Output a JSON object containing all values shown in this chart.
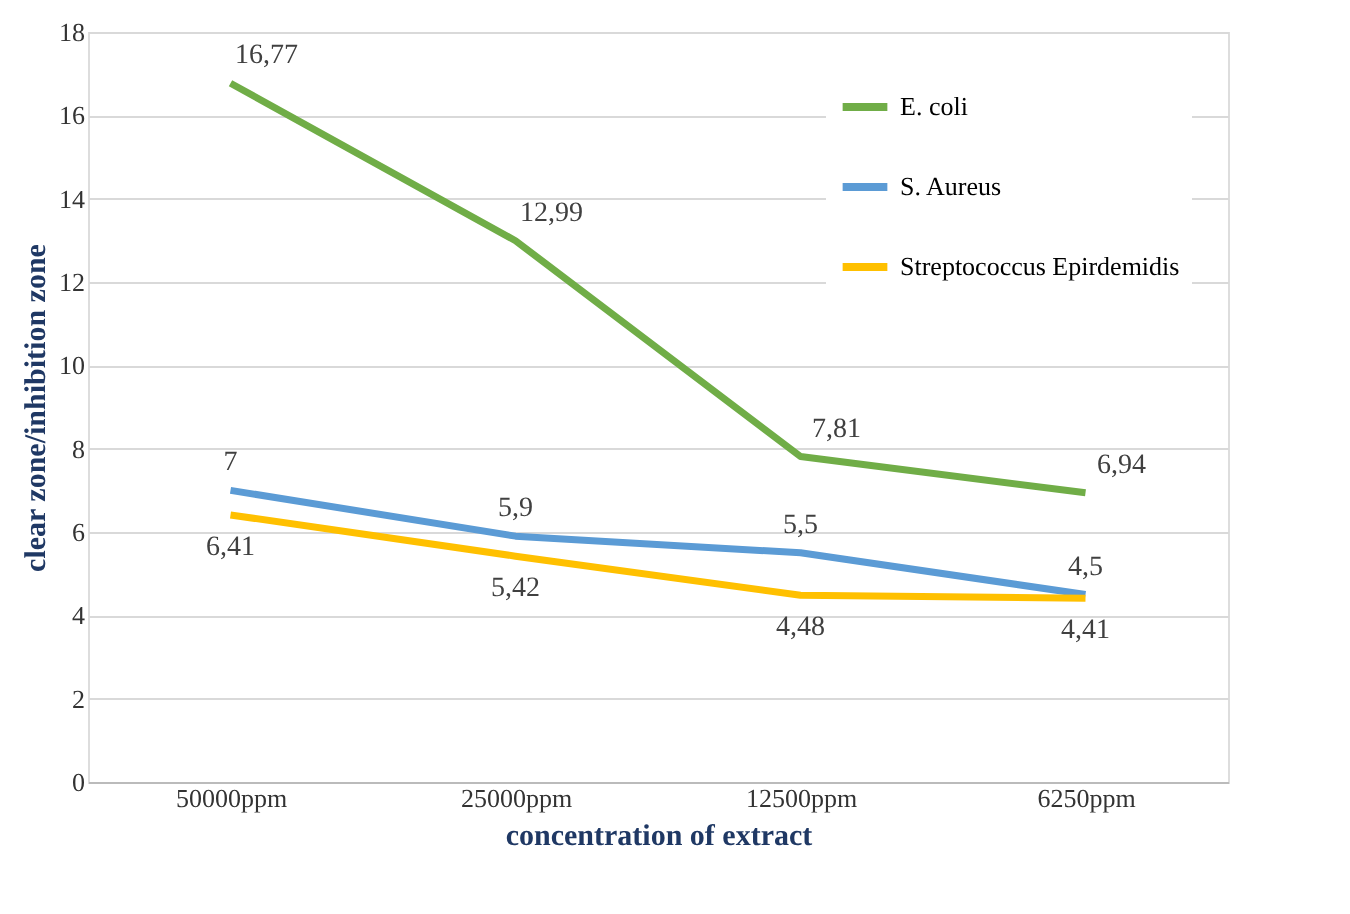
{
  "chart_data": {
    "type": "line",
    "xlabel": "concentration of extract",
    "ylabel": "clear zone/inhibition zone",
    "categories": [
      "50000ppm",
      "25000ppm",
      "12500ppm",
      "6250ppm"
    ],
    "series": [
      {
        "name": "E. coli",
        "color": "#70ad47",
        "values": [
          16.77,
          12.99,
          7.81,
          6.94
        ],
        "value_labels": [
          "16,77",
          "12,99",
          "7,81",
          "6,94"
        ]
      },
      {
        "name": "S. Aureus",
        "color": "#5b9bd5",
        "values": [
          7,
          5.9,
          5.5,
          4.5
        ],
        "value_labels": [
          "7",
          "5,9",
          "5,5",
          "4,5"
        ]
      },
      {
        "name": "Streptococcus Epirdemidis",
        "color": "#ffc000",
        "values": [
          6.41,
          5.42,
          4.48,
          4.41
        ],
        "value_labels": [
          "6,41",
          "5,42",
          "4,48",
          "4,41"
        ]
      }
    ],
    "ylim": [
      0,
      18
    ],
    "yticks": [
      0,
      2,
      4,
      6,
      8,
      10,
      12,
      14,
      16,
      18
    ],
    "grid": "y",
    "legend": "top right",
    "marker": "none",
    "line_style": "solid"
  }
}
